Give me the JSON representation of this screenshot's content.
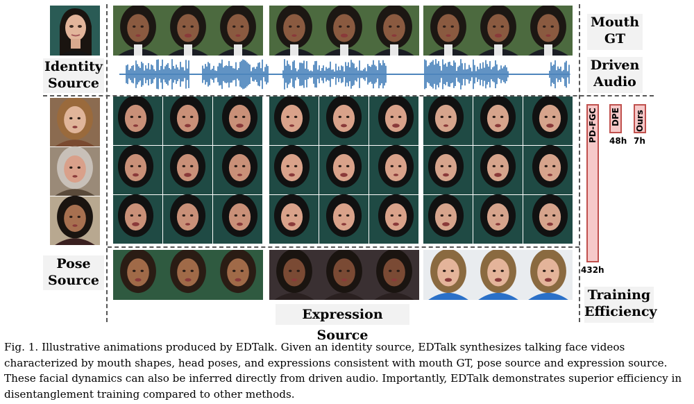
{
  "labels": {
    "identity_source": [
      "Identity",
      "Source"
    ],
    "pose_source": [
      "Pose",
      "Source"
    ],
    "mouth_gt": [
      "Mouth",
      "GT"
    ],
    "driven_audio": [
      "Driven",
      "Audio"
    ],
    "expression_source": "Expression Source",
    "training_efficiency": [
      "Training",
      "Efficiency"
    ]
  },
  "chart_data": {
    "type": "bar",
    "title": "",
    "categories": [
      "PD-FGC",
      "DPE",
      "Ours"
    ],
    "values": [
      432,
      48,
      7
    ],
    "value_labels": [
      "432h",
      "48h",
      "7h"
    ],
    "colors": {
      "fill": "#f6c9c9",
      "border": "#c0504d"
    }
  },
  "colors": {
    "label_bg": "#f2f2f2",
    "audio_wave": "#3a78b5",
    "dashed_line": "#555555",
    "teal_bg": "#1f4a44"
  },
  "caption": {
    "lines": [
      "Fig. 1.   Illustrative animations produced by EDTalk.  Given an identity source, EDTalk synthesizes talking face videos",
      "characterized by mouth shapes, head poses, and expressions consistent with mouth GT, pose source and expression source.",
      "These facial dynamics can also be inferred directly from driven audio. Importantly, EDTalk demonstrates superior efficiency in",
      "disentanglement training compared to other methods."
    ]
  }
}
